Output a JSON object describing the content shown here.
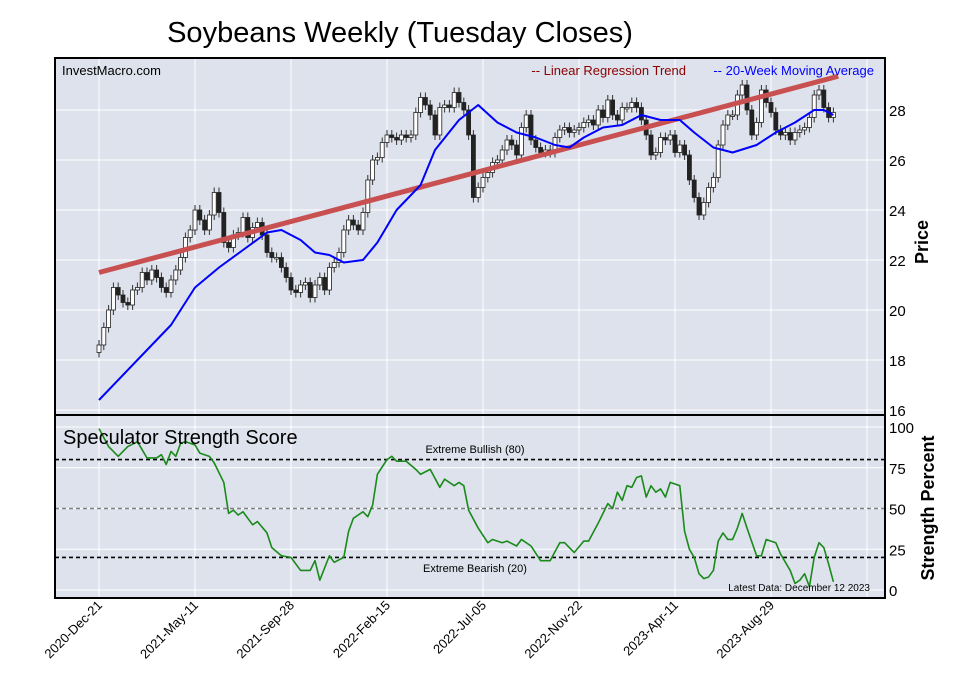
{
  "chart_data": [
    {
      "type": "candlestick",
      "title": "Soybeans Weekly (Tuesday Closes)",
      "watermark": "InvestMacro.com",
      "ylabel": "Price",
      "ylim": [
        16,
        30
      ],
      "yticks": [
        "16",
        "18",
        "20",
        "22",
        "24",
        "26",
        "28"
      ],
      "ytick_values": [
        16,
        18,
        20,
        22,
        24,
        26,
        28
      ],
      "x_unit": "weeks since 2020-Dec-21",
      "xlim": [
        -10,
        160
      ],
      "xticks": [
        {
          "week": 0,
          "label": "2020-Dec-21"
        },
        {
          "week": 20,
          "label": "2021-May-11"
        },
        {
          "week": 40,
          "label": "2021-Sep-28"
        },
        {
          "week": 60,
          "label": "2022-Feb-15"
        },
        {
          "week": 80,
          "label": "2022-Jul-05"
        },
        {
          "week": 100,
          "label": "2022-Nov-22"
        },
        {
          "week": 120,
          "label": "2023-Apr-11"
        },
        {
          "week": 140,
          "label": "2023-Aug-29"
        },
        {
          "week": 160,
          "label": ""
        }
      ],
      "first_open": 18.3,
      "closes": [
        18.6,
        19.3,
        20.0,
        20.9,
        20.6,
        20.3,
        20.2,
        20.8,
        20.9,
        21.5,
        21.2,
        21.6,
        21.3,
        20.9,
        20.7,
        21.2,
        21.6,
        22.1,
        22.9,
        23.2,
        24.0,
        23.6,
        23.2,
        23.8,
        24.7,
        23.9,
        22.7,
        22.5,
        23.0,
        23.1,
        23.7,
        22.9,
        23.3,
        23.5,
        23.0,
        22.3,
        22.1,
        22.1,
        21.7,
        21.3,
        20.8,
        20.7,
        21.0,
        21.1,
        20.5,
        21.0,
        21.3,
        20.8,
        21.7,
        21.9,
        22.3,
        23.2,
        23.6,
        23.4,
        23.2,
        23.9,
        25.2,
        26.0,
        26.1,
        26.7,
        27.0,
        26.9,
        26.8,
        27.0,
        26.9,
        27.0,
        27.9,
        28.5,
        28.2,
        27.8,
        27.0,
        28.1,
        28.2,
        28.1,
        28.7,
        28.3,
        28.0,
        27.0,
        24.5,
        24.9,
        25.3,
        25.5,
        25.9,
        26.0,
        26.4,
        26.8,
        26.6,
        26.2,
        27.3,
        27.8,
        26.8,
        26.5,
        26.3,
        26.4,
        26.3,
        26.9,
        27.2,
        27.3,
        27.1,
        27.2,
        27.3,
        27.5,
        27.6,
        27.4,
        28.0,
        27.7,
        28.4,
        27.8,
        27.6,
        28.1,
        28.1,
        28.3,
        28.1,
        27.6,
        27.0,
        26.2,
        26.3,
        26.9,
        26.8,
        27.0,
        26.3,
        26.6,
        26.2,
        25.2,
        24.5,
        23.8,
        24.3,
        24.9,
        25.3,
        26.6,
        27.4,
        27.8,
        27.8,
        28.6,
        29.0,
        28.0,
        27.0,
        27.5,
        28.8,
        28.3,
        27.9,
        27.2,
        27.0,
        27.1,
        26.8,
        27.1,
        27.2,
        27.3,
        27.7,
        28.6,
        28.8,
        28.1,
        27.7,
        27.9
      ],
      "series": [
        {
          "name": "-- Linear Regression Trend",
          "color": "#8b0000",
          "line_color": "#c85050",
          "points": [
            [
              0,
              21.5
            ],
            [
              154,
              29.35
            ]
          ]
        },
        {
          "name": "-- 20-Week Moving Average",
          "color": "#0000ff",
          "points": [
            [
              0,
              16.4
            ],
            [
              5,
              17.4
            ],
            [
              10,
              18.4
            ],
            [
              15,
              19.4
            ],
            [
              20,
              20.9
            ],
            [
              25,
              21.7
            ],
            [
              30,
              22.4
            ],
            [
              35,
              23.1
            ],
            [
              38,
              23.2
            ],
            [
              42,
              22.8
            ],
            [
              45,
              22.3
            ],
            [
              48,
              22.2
            ],
            [
              51,
              21.9
            ],
            [
              55,
              22.0
            ],
            [
              58,
              22.7
            ],
            [
              62,
              24.0
            ],
            [
              67,
              25.0
            ],
            [
              70,
              26.4
            ],
            [
              75,
              27.6
            ],
            [
              79,
              28.2
            ],
            [
              83,
              27.5
            ],
            [
              87,
              27.1
            ],
            [
              91,
              26.9
            ],
            [
              95,
              26.6
            ],
            [
              98,
              26.5
            ],
            [
              101,
              26.9
            ],
            [
              105,
              27.3
            ],
            [
              109,
              27.4
            ],
            [
              113,
              27.8
            ],
            [
              117,
              27.6
            ],
            [
              121,
              27.6
            ],
            [
              124,
              27.1
            ],
            [
              128,
              26.5
            ],
            [
              132,
              26.3
            ],
            [
              137,
              26.6
            ],
            [
              141,
              27.1
            ],
            [
              145,
              27.5
            ],
            [
              149,
              28.0
            ],
            [
              151,
              28.0
            ],
            [
              153,
              27.8
            ]
          ]
        }
      ]
    },
    {
      "type": "line",
      "title": "Speculator Strength Score",
      "ylabel": "Strength Percent",
      "ylim": [
        0,
        100
      ],
      "yticks": [
        "0",
        "25",
        "50",
        "75",
        "100"
      ],
      "ytick_values": [
        0,
        25,
        50,
        75,
        100
      ],
      "reference_lines": [
        {
          "value": 80,
          "label": "Extreme Bullish (80)",
          "color": "#000000"
        },
        {
          "value": 50,
          "label": "",
          "color": "#808080"
        },
        {
          "value": 20,
          "label": "Extreme Bearish (20)",
          "color": "#000000"
        }
      ],
      "annotation": "Latest Data: December 12 2023",
      "series": [
        {
          "name": "Speculator Strength Score",
          "color": "#1a8a1a",
          "points": [
            [
              0,
              99
            ],
            [
              2,
              88
            ],
            [
              4,
              82
            ],
            [
              6,
              88
            ],
            [
              8,
              91
            ],
            [
              9,
              86
            ],
            [
              10,
              81
            ],
            [
              12,
              81
            ],
            [
              13,
              83
            ],
            [
              14,
              77
            ],
            [
              15,
              85
            ],
            [
              16,
              82
            ],
            [
              17,
              90
            ],
            [
              18,
              91
            ],
            [
              20,
              89
            ],
            [
              21,
              84
            ],
            [
              23,
              82
            ],
            [
              24,
              78
            ],
            [
              26,
              66
            ],
            [
              27,
              47
            ],
            [
              28,
              49
            ],
            [
              29,
              46
            ],
            [
              30,
              48
            ],
            [
              32,
              40
            ],
            [
              33,
              42
            ],
            [
              35,
              35
            ],
            [
              36,
              26
            ],
            [
              38,
              21
            ],
            [
              40,
              20
            ],
            [
              42,
              12
            ],
            [
              44,
              12
            ],
            [
              45,
              18
            ],
            [
              46,
              6
            ],
            [
              48,
              21
            ],
            [
              49,
              17
            ],
            [
              51,
              20
            ],
            [
              52,
              36
            ],
            [
              53,
              44
            ],
            [
              55,
              48
            ],
            [
              56,
              45
            ],
            [
              57,
              52
            ],
            [
              58,
              71
            ],
            [
              60,
              80
            ],
            [
              61,
              82
            ],
            [
              62,
              79
            ],
            [
              64,
              79
            ],
            [
              66,
              74
            ],
            [
              67,
              71
            ],
            [
              69,
              74
            ],
            [
              71,
              63
            ],
            [
              72,
              68
            ],
            [
              74,
              64
            ],
            [
              75,
              66
            ],
            [
              76,
              64
            ],
            [
              77,
              49
            ],
            [
              79,
              38
            ],
            [
              81,
              29
            ],
            [
              82,
              31
            ],
            [
              84,
              29
            ],
            [
              85,
              30
            ],
            [
              87,
              27
            ],
            [
              88,
              31
            ],
            [
              90,
              27
            ],
            [
              92,
              18
            ],
            [
              94,
              18
            ],
            [
              96,
              29
            ],
            [
              97,
              29
            ],
            [
              99,
              23
            ],
            [
              101,
              30
            ],
            [
              102,
              30
            ],
            [
              104,
              41
            ],
            [
              106,
              53
            ],
            [
              107,
              50
            ],
            [
              108,
              60
            ],
            [
              109,
              55
            ],
            [
              110,
              64
            ],
            [
              111,
              63
            ],
            [
              112,
              69
            ],
            [
              113,
              70
            ],
            [
              114,
              57
            ],
            [
              115,
              64
            ],
            [
              116,
              60
            ],
            [
              117,
              62
            ],
            [
              118,
              57
            ],
            [
              119,
              66
            ],
            [
              120,
              65
            ],
            [
              121,
              64
            ],
            [
              122,
              36
            ],
            [
              123,
              25
            ],
            [
              124,
              20
            ],
            [
              125,
              10
            ],
            [
              126,
              7
            ],
            [
              127,
              8
            ],
            [
              128,
              12
            ],
            [
              129,
              30
            ],
            [
              130,
              35
            ],
            [
              131,
              31
            ],
            [
              132,
              31
            ],
            [
              133,
              38
            ],
            [
              134,
              47
            ],
            [
              135,
              38
            ],
            [
              137,
              21
            ],
            [
              138,
              21
            ],
            [
              139,
              31
            ],
            [
              140,
              30
            ],
            [
              141,
              29
            ],
            [
              142,
              22
            ],
            [
              144,
              12
            ],
            [
              145,
              4
            ],
            [
              146,
              6
            ],
            [
              147,
              10
            ],
            [
              148,
              2
            ],
            [
              149,
              20
            ],
            [
              150,
              29
            ],
            [
              151,
              26
            ],
            [
              152,
              16
            ],
            [
              153,
              5
            ]
          ]
        }
      ]
    }
  ]
}
